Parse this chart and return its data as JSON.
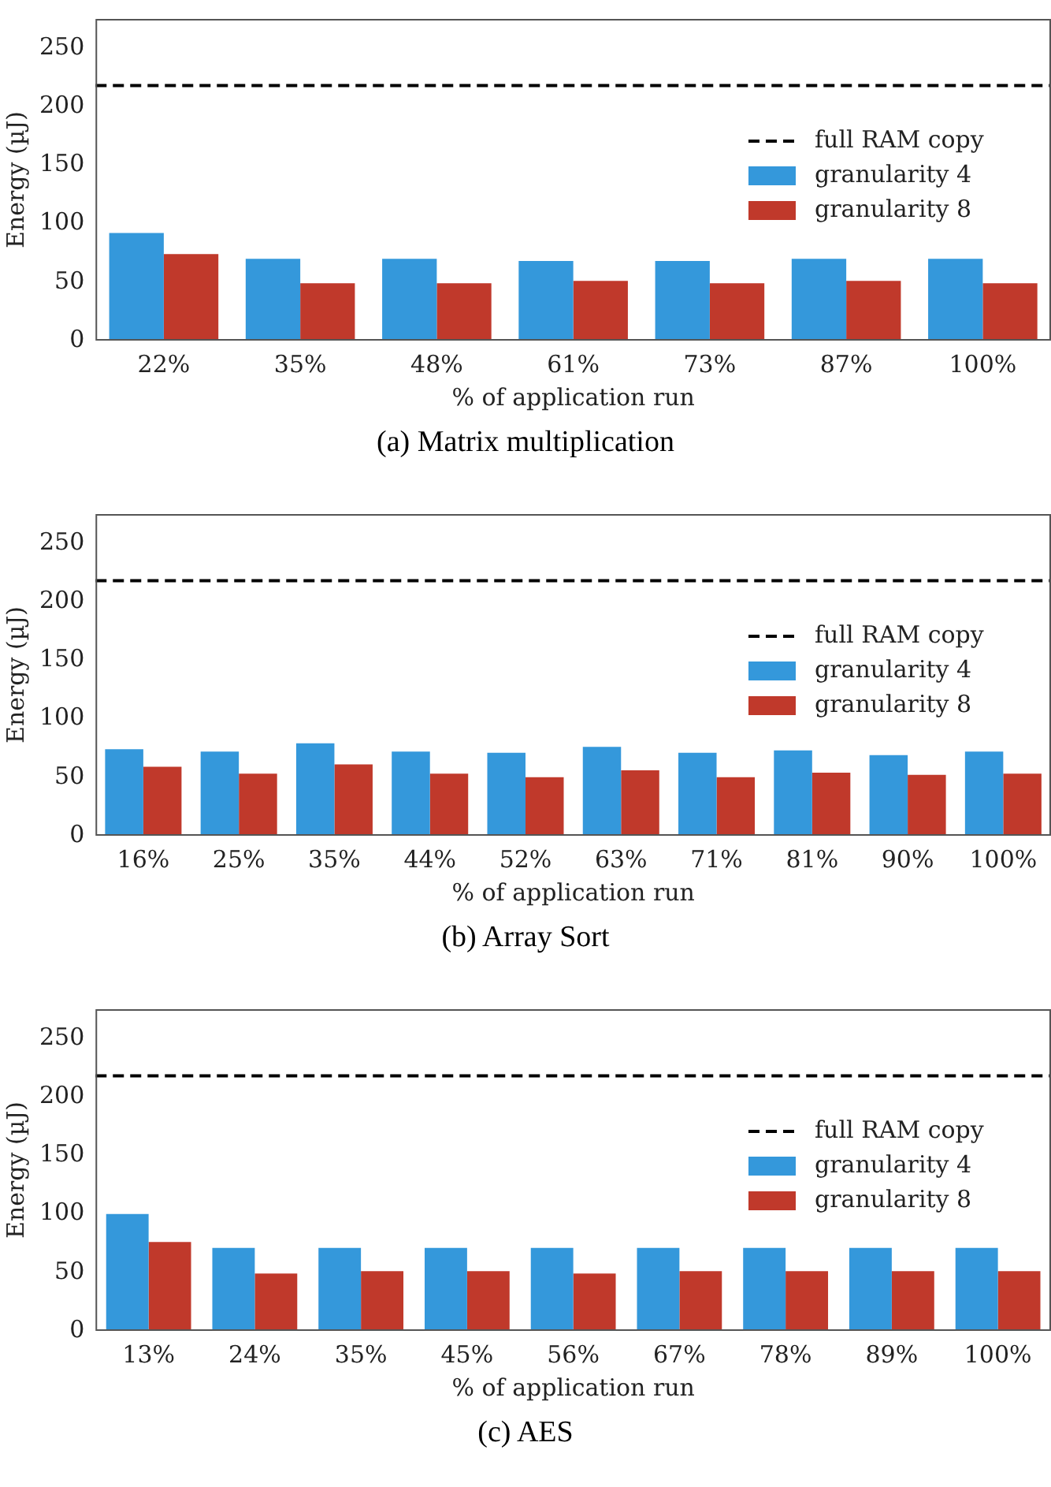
{
  "chart_data": [
    {
      "type": "bar",
      "xlabel": "% of application run",
      "ylabel": "Energy (µJ)",
      "annotations": [
        "(a) Matrix multiplication"
      ],
      "categories": [
        "22%",
        "35%",
        "48%",
        "61%",
        "73%",
        "87%",
        "100%"
      ],
      "series": [
        {
          "name": "granularity 4",
          "color": "#3498db",
          "values": [
            92,
            70,
            70,
            68,
            68,
            70,
            70
          ]
        },
        {
          "name": "granularity 8",
          "color": "#c0392b",
          "values": [
            74,
            49,
            49,
            51,
            49,
            51,
            49
          ]
        }
      ],
      "ref_lines": [
        {
          "axis": "y",
          "value": 218,
          "label": "full RAM copy",
          "color": "#000000",
          "line_style": "dashed"
        }
      ],
      "ylim": [
        0,
        275
      ],
      "yticks": [
        0,
        50,
        100,
        150,
        200,
        250
      ],
      "grid": false,
      "legend": "right"
    },
    {
      "type": "bar",
      "xlabel": "% of application run",
      "ylabel": "Energy (µJ)",
      "annotations": [
        "(b) Array Sort"
      ],
      "categories": [
        "16%",
        "25%",
        "35%",
        "44%",
        "52%",
        "63%",
        "71%",
        "81%",
        "90%",
        "100%"
      ],
      "series": [
        {
          "name": "granularity 4",
          "color": "#3498db",
          "values": [
            74,
            72,
            79,
            72,
            71,
            76,
            71,
            73,
            69,
            72
          ]
        },
        {
          "name": "granularity 8",
          "color": "#c0392b",
          "values": [
            59,
            53,
            61,
            53,
            50,
            56,
            50,
            54,
            52,
            53
          ]
        }
      ],
      "ref_lines": [
        {
          "axis": "y",
          "value": 218,
          "label": "full RAM copy",
          "color": "#000000",
          "line_style": "dashed"
        }
      ],
      "ylim": [
        0,
        275
      ],
      "yticks": [
        0,
        50,
        100,
        150,
        200,
        250
      ],
      "grid": false,
      "legend": "right"
    },
    {
      "type": "bar",
      "xlabel": "% of application run",
      "ylabel": "Energy (µJ)",
      "annotations": [
        "(c) AES"
      ],
      "categories": [
        "13%",
        "24%",
        "35%",
        "45%",
        "56%",
        "67%",
        "78%",
        "89%",
        "100%"
      ],
      "series": [
        {
          "name": "granularity 4",
          "color": "#3498db",
          "values": [
            100,
            71,
            71,
            71,
            71,
            71,
            71,
            71,
            71
          ]
        },
        {
          "name": "granularity 8",
          "color": "#c0392b",
          "values": [
            76,
            49,
            51,
            51,
            49,
            51,
            51,
            51,
            51
          ]
        }
      ],
      "ref_lines": [
        {
          "axis": "y",
          "value": 218,
          "label": "full RAM copy",
          "color": "#000000",
          "line_style": "dashed"
        }
      ],
      "ylim": [
        0,
        275
      ],
      "yticks": [
        0,
        50,
        100,
        150,
        200,
        250
      ],
      "grid": false,
      "legend": "right"
    }
  ]
}
